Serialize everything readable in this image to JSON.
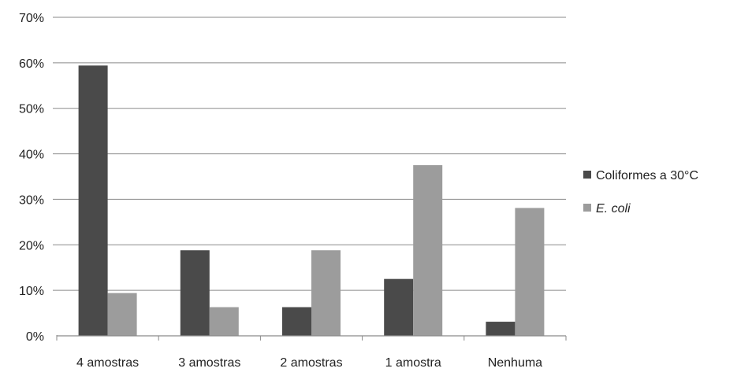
{
  "chart_data": {
    "type": "bar",
    "categories": [
      "4 amostras",
      "3 amostras",
      "2 amostras",
      "1 amostra",
      "Nenhuma"
    ],
    "series": [
      {
        "name": "Coliformes a 30°C",
        "values": [
          59.4,
          18.8,
          6.3,
          12.5,
          3.1
        ],
        "color": "#4a4a4a"
      },
      {
        "name": "E. coli",
        "values": [
          9.4,
          6.3,
          18.8,
          37.5,
          28.1
        ],
        "color": "#9c9c9c",
        "italic": true
      }
    ],
    "y_ticks": [
      "0%",
      "10%",
      "20%",
      "30%",
      "40%",
      "50%",
      "60%",
      "70%"
    ],
    "ylim": [
      0,
      70
    ],
    "grid": true,
    "legend_position": "right",
    "title": "",
    "xlabel": "",
    "ylabel": ""
  }
}
